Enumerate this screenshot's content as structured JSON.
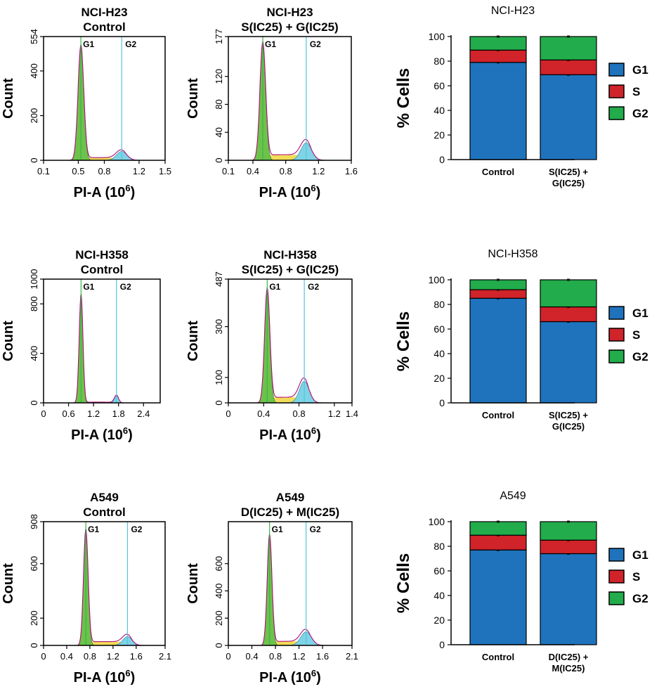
{
  "colors": {
    "g1": "#1f73bd",
    "s": "#d0232a",
    "g2": "#22ac4b",
    "hist_g1_fill": "#6cc24a",
    "hist_g2_fill": "#7fd3e6",
    "hist_s_fill": "#f2dc58",
    "hist_outline": "#b0107a",
    "marker_g1": "#3ab54a",
    "marker_g2": "#54c6d9",
    "axis": "#000000"
  },
  "hist_ylabel": "Count",
  "hist_xlabel_main": "PI-A (10",
  "hist_xlabel_exp": "6",
  "hist_xlabel_close": ")",
  "marker_labels": {
    "g1": "G1",
    "g2": "G2"
  },
  "legend": [
    {
      "label": "G1",
      "color_key": "g1"
    },
    {
      "label": "S",
      "color_key": "s"
    },
    {
      "label": "G2",
      "color_key": "g2"
    }
  ],
  "chart_data": [
    {
      "type": "area",
      "title_line1": "NCI-H23",
      "title_line2": "Control",
      "xlabel": "PI-A (10^6)",
      "ylabel": "Count",
      "xlim": [
        0.1,
        1.5
      ],
      "ylim": [
        0,
        554
      ],
      "xticks": [
        "0.1",
        "0.5",
        "0.8",
        "1.2",
        "1.5"
      ],
      "xtick_values": [
        0.1,
        0.5,
        0.8,
        1.2,
        1.5
      ],
      "yticks": [
        "0",
        "200",
        "400",
        "554"
      ],
      "ytick_values": [
        0,
        200,
        400,
        554
      ],
      "g1_peak": {
        "x": 0.53,
        "height": 510,
        "sd": 0.033
      },
      "g2_peak": {
        "x": 1.0,
        "height": 40,
        "sd": 0.06
      },
      "s_level": 12,
      "markers": {
        "g1": 0.53,
        "g2": 1.0
      }
    },
    {
      "type": "area",
      "title_line1": "NCI-H23",
      "title_line2": "S(IC25) + G(IC25)",
      "xlabel": "PI-A (10^6)",
      "ylabel": "Count",
      "xlim": [
        0.1,
        1.6
      ],
      "ylim": [
        0,
        177
      ],
      "xticks": [
        "0.1",
        "0.4",
        "0.8",
        "1.2",
        "1.6"
      ],
      "xtick_values": [
        0.1,
        0.4,
        0.8,
        1.2,
        1.6
      ],
      "yticks": [
        "0",
        "40",
        "80",
        "120",
        "177"
      ],
      "ytick_values": [
        0,
        40,
        80,
        120,
        177
      ],
      "g1_peak": {
        "x": 0.52,
        "height": 165,
        "sd": 0.035
      },
      "g2_peak": {
        "x": 1.05,
        "height": 25,
        "sd": 0.065
      },
      "s_level": 8,
      "markers": {
        "g1": 0.52,
        "g2": 1.05
      }
    },
    {
      "type": "bar",
      "stacked": true,
      "title": "NCI-H23",
      "ylabel": "% Cells",
      "categories": [
        "Control",
        "S(IC25) +\nG(IC25)"
      ],
      "category_lines": [
        [
          "Control"
        ],
        [
          "S(IC25) +",
          "G(IC25)"
        ]
      ],
      "series": [
        {
          "name": "G1",
          "values": [
            79,
            69
          ]
        },
        {
          "name": "S",
          "values": [
            10,
            12
          ]
        },
        {
          "name": "G2",
          "values": [
            11,
            19
          ]
        }
      ],
      "ylim": [
        0,
        100
      ],
      "yticks": [
        "0",
        "20",
        "40",
        "60",
        "80",
        "100"
      ],
      "ytick_values": [
        0,
        20,
        40,
        60,
        80,
        100
      ]
    },
    {
      "type": "area",
      "title_line1": "NCI-H358",
      "title_line2": "Control",
      "xlabel": "PI-A (10^6)",
      "ylabel": "Count",
      "xlim": [
        0,
        2.8
      ],
      "ylim": [
        0,
        1000
      ],
      "xticks": [
        "0",
        "0.6",
        "1.2",
        "1.8",
        "2.4"
      ],
      "xtick_values": [
        0,
        0.6,
        1.2,
        1.8,
        2.4
      ],
      "yticks": [
        "0",
        "400",
        "800",
        "1000"
      ],
      "ytick_values": [
        0,
        400,
        800,
        1000
      ],
      "g1_peak": {
        "x": 0.9,
        "height": 880,
        "sd": 0.045
      },
      "g2_peak": {
        "x": 1.75,
        "height": 60,
        "sd": 0.05
      },
      "s_level": 6,
      "markers": {
        "g1": 0.9,
        "g2": 1.75
      }
    },
    {
      "type": "area",
      "title_line1": "NCI-H358",
      "title_line2": "S(IC25) + G(IC25)",
      "xlabel": "PI-A (10^6)",
      "ylabel": "Count",
      "xlim": [
        0,
        1.4
      ],
      "ylim": [
        0,
        487
      ],
      "xticks": [
        "0",
        "0.4",
        "0.8",
        "1.2",
        "1.4"
      ],
      "xtick_values": [
        0,
        0.4,
        0.8,
        1.2,
        1.4
      ],
      "yticks": [
        "0",
        "100",
        "300",
        "487"
      ],
      "ytick_values": [
        0,
        100,
        300,
        487
      ],
      "g1_peak": {
        "x": 0.44,
        "height": 440,
        "sd": 0.03
      },
      "g2_peak": {
        "x": 0.86,
        "height": 85,
        "sd": 0.055
      },
      "s_level": 22,
      "markers": {
        "g1": 0.44,
        "g2": 0.86
      }
    },
    {
      "type": "bar",
      "stacked": true,
      "title": "NCI-H358",
      "ylabel": "% Cells",
      "categories": [
        "Control",
        "S(IC25) +\nG(IC25)"
      ],
      "category_lines": [
        [
          "Control"
        ],
        [
          "S(IC25) +",
          "G(IC25)"
        ]
      ],
      "series": [
        {
          "name": "G1",
          "values": [
            85,
            66
          ]
        },
        {
          "name": "S",
          "values": [
            7,
            12
          ]
        },
        {
          "name": "G2",
          "values": [
            8,
            22
          ]
        }
      ],
      "ylim": [
        0,
        100
      ],
      "yticks": [
        "0",
        "20",
        "40",
        "60",
        "80",
        "100"
      ],
      "ytick_values": [
        0,
        20,
        40,
        60,
        80,
        100
      ]
    },
    {
      "type": "area",
      "title_line1": "A549",
      "title_line2": "Control",
      "xlabel": "PI-A (10^6)",
      "ylabel": "Count",
      "xlim": [
        0,
        2.1
      ],
      "ylim": [
        0,
        908
      ],
      "xticks": [
        "0",
        "0.4",
        "0.8",
        "1.2",
        "1.6",
        "2.1"
      ],
      "xtick_values": [
        0,
        0.4,
        0.8,
        1.2,
        1.6,
        2.1
      ],
      "yticks": [
        "0",
        "200",
        "600",
        "908"
      ],
      "ytick_values": [
        0,
        200,
        600,
        908
      ],
      "g1_peak": {
        "x": 0.73,
        "height": 840,
        "sd": 0.04
      },
      "g2_peak": {
        "x": 1.45,
        "height": 65,
        "sd": 0.08
      },
      "s_level": 28,
      "markers": {
        "g1": 0.73,
        "g2": 1.45
      }
    },
    {
      "type": "area",
      "title_line1": "A549",
      "title_line2": "D(IC25) + M(IC25)",
      "xlabel": "PI-A (10^6)",
      "ylabel": "Count",
      "xlim": [
        0,
        2.1
      ],
      "ylim": [
        0,
        908
      ],
      "xticks": [
        "0",
        "0.4",
        "0.8",
        "1.2",
        "1.6",
        "2.1"
      ],
      "xtick_values": [
        0,
        0.4,
        0.8,
        1.2,
        1.6,
        2.1
      ],
      "yticks": [
        "0",
        "200",
        "400",
        "600"
      ],
      "ytick_values": [
        0,
        200,
        400,
        600
      ],
      "g1_peak": {
        "x": 0.7,
        "height": 800,
        "sd": 0.04
      },
      "g2_peak": {
        "x": 1.32,
        "height": 100,
        "sd": 0.09
      },
      "s_level": 30,
      "markers": {
        "g1": 0.7,
        "g2": 1.32
      }
    },
    {
      "type": "bar",
      "stacked": true,
      "title": "A549",
      "ylabel": "% Cells",
      "categories": [
        "Control",
        "D(IC25) +\nM(IC25)"
      ],
      "category_lines": [
        [
          "Control"
        ],
        [
          "D(IC25) +",
          "M(IC25)"
        ]
      ],
      "series": [
        {
          "name": "G1",
          "values": [
            77,
            74
          ]
        },
        {
          "name": "S",
          "values": [
            12,
            11
          ]
        },
        {
          "name": "G2",
          "values": [
            11,
            15
          ]
        }
      ],
      "ylim": [
        0,
        100
      ],
      "yticks": [
        "0",
        "20",
        "40",
        "60",
        "80",
        "100"
      ],
      "ytick_values": [
        0,
        20,
        40,
        60,
        80,
        100
      ]
    }
  ]
}
